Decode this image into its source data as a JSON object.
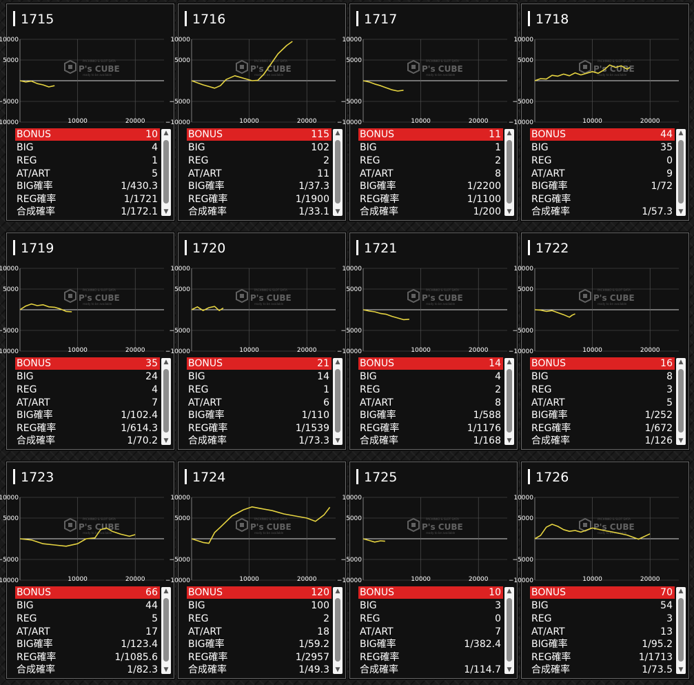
{
  "watermark": {
    "brand": "P's CUBE",
    "line1": "PACHINKO & SLOT DATA",
    "line2": "ready to be available"
  },
  "colors": {
    "line": "#e6d441",
    "bonus_row": "#dd2222",
    "grid": "#5a5a5a",
    "axis": "#9a9a9a"
  },
  "machines": [
    {
      "id": "1715",
      "stats": {
        "bonus_label": "BONUS",
        "bonus": "10",
        "big_label": "BIG",
        "big": "4",
        "reg_label": "REG",
        "reg": "1",
        "at_label": "AT/ART",
        "at": "5",
        "bigp_label": "BIG確率",
        "bigp": "1/430.3",
        "regp_label": "REG確率",
        "regp": "1/1721",
        "totp_label": "合成確率",
        "totp": "1/172.1"
      }
    },
    {
      "id": "1716",
      "stats": {
        "bonus_label": "BONUS",
        "bonus": "115",
        "big_label": "BIG",
        "big": "102",
        "reg_label": "REG",
        "reg": "2",
        "at_label": "AT/ART",
        "at": "11",
        "bigp_label": "BIG確率",
        "bigp": "1/37.3",
        "regp_label": "REG確率",
        "regp": "1/1900",
        "totp_label": "合成確率",
        "totp": "1/33.1"
      }
    },
    {
      "id": "1717",
      "stats": {
        "bonus_label": "BONUS",
        "bonus": "11",
        "big_label": "BIG",
        "big": "1",
        "reg_label": "REG",
        "reg": "2",
        "at_label": "AT/ART",
        "at": "8",
        "bigp_label": "BIG確率",
        "bigp": "1/2200",
        "regp_label": "REG確率",
        "regp": "1/1100",
        "totp_label": "合成確率",
        "totp": "1/200"
      }
    },
    {
      "id": "1718",
      "stats": {
        "bonus_label": "BONUS",
        "bonus": "44",
        "big_label": "BIG",
        "big": "35",
        "reg_label": "REG",
        "reg": "0",
        "at_label": "AT/ART",
        "at": "9",
        "bigp_label": "BIG確率",
        "bigp": "1/72",
        "regp_label": "REG確率",
        "regp": "",
        "totp_label": "合成確率",
        "totp": "1/57.3"
      }
    },
    {
      "id": "1719",
      "stats": {
        "bonus_label": "BONUS",
        "bonus": "35",
        "big_label": "BIG",
        "big": "24",
        "reg_label": "REG",
        "reg": "4",
        "at_label": "AT/ART",
        "at": "7",
        "bigp_label": "BIG確率",
        "bigp": "1/102.4",
        "regp_label": "REG確率",
        "regp": "1/614.3",
        "totp_label": "合成確率",
        "totp": "1/70.2"
      }
    },
    {
      "id": "1720",
      "stats": {
        "bonus_label": "BONUS",
        "bonus": "21",
        "big_label": "BIG",
        "big": "14",
        "reg_label": "REG",
        "reg": "1",
        "at_label": "AT/ART",
        "at": "6",
        "bigp_label": "BIG確率",
        "bigp": "1/110",
        "regp_label": "REG確率",
        "regp": "1/1539",
        "totp_label": "合成確率",
        "totp": "1/73.3"
      }
    },
    {
      "id": "1721",
      "stats": {
        "bonus_label": "BONUS",
        "bonus": "14",
        "big_label": "BIG",
        "big": "4",
        "reg_label": "REG",
        "reg": "2",
        "at_label": "AT/ART",
        "at": "8",
        "bigp_label": "BIG確率",
        "bigp": "1/588",
        "regp_label": "REG確率",
        "regp": "1/1176",
        "totp_label": "合成確率",
        "totp": "1/168"
      }
    },
    {
      "id": "1722",
      "stats": {
        "bonus_label": "BONUS",
        "bonus": "16",
        "big_label": "BIG",
        "big": "8",
        "reg_label": "REG",
        "reg": "3",
        "at_label": "AT/ART",
        "at": "5",
        "bigp_label": "BIG確率",
        "bigp": "1/252",
        "regp_label": "REG確率",
        "regp": "1/672",
        "totp_label": "合成確率",
        "totp": "1/126"
      }
    },
    {
      "id": "1723",
      "stats": {
        "bonus_label": "BONUS",
        "bonus": "66",
        "big_label": "BIG",
        "big": "44",
        "reg_label": "REG",
        "reg": "5",
        "at_label": "AT/ART",
        "at": "17",
        "bigp_label": "BIG確率",
        "bigp": "1/123.4",
        "regp_label": "REG確率",
        "regp": "1/1085.6",
        "totp_label": "合成確率",
        "totp": "1/82.3"
      }
    },
    {
      "id": "1724",
      "stats": {
        "bonus_label": "BONUS",
        "bonus": "120",
        "big_label": "BIG",
        "big": "100",
        "reg_label": "REG",
        "reg": "2",
        "at_label": "AT/ART",
        "at": "18",
        "bigp_label": "BIG確率",
        "bigp": "1/59.2",
        "regp_label": "REG確率",
        "regp": "1/2957",
        "totp_label": "合成確率",
        "totp": "1/49.3"
      }
    },
    {
      "id": "1725",
      "stats": {
        "bonus_label": "BONUS",
        "bonus": "10",
        "big_label": "BIG",
        "big": "3",
        "reg_label": "REG",
        "reg": "0",
        "at_label": "AT/ART",
        "at": "7",
        "bigp_label": "BIG確率",
        "bigp": "1/382.4",
        "regp_label": "REG確率",
        "regp": "",
        "totp_label": "合成確率",
        "totp": "1/114.7"
      }
    },
    {
      "id": "1726",
      "stats": {
        "bonus_label": "BONUS",
        "bonus": "70",
        "big_label": "BIG",
        "big": "54",
        "reg_label": "REG",
        "reg": "3",
        "at_label": "AT/ART",
        "at": "13",
        "bigp_label": "BIG確率",
        "bigp": "1/95.2",
        "regp_label": "REG確率",
        "regp": "1/1713",
        "totp_label": "合成確率",
        "totp": "1/73.5"
      }
    }
  ],
  "chart_data": [
    {
      "type": "line",
      "title": "1715",
      "ylim": [
        -10000,
        10000
      ],
      "yticks": [
        "10000",
        "5000",
        "−5000",
        "−10000"
      ],
      "xticks": [
        "10000",
        "20000"
      ],
      "x": [
        0,
        1000,
        2000,
        3000,
        4000,
        5000,
        6000
      ],
      "y": [
        0,
        -300,
        -100,
        -700,
        -1000,
        -1500,
        -1200
      ]
    },
    {
      "type": "line",
      "title": "1716",
      "ylim": [
        -10000,
        10000
      ],
      "yticks": [
        "10000",
        "5000",
        "−5000",
        "−10000"
      ],
      "xticks": [
        "10000",
        "20000"
      ],
      "x": [
        0,
        2000,
        4000,
        5000,
        6000,
        7500,
        9000,
        10500,
        11500,
        12500,
        13500,
        15000,
        16500,
        17500
      ],
      "y": [
        0,
        -1000,
        -1800,
        -1200,
        300,
        1200,
        600,
        0,
        100,
        1500,
        3500,
        6500,
        8500,
        9500
      ]
    },
    {
      "type": "line",
      "title": "1717",
      "ylim": [
        -10000,
        10000
      ],
      "yticks": [
        "10000",
        "5000",
        "−5000",
        "−10000"
      ],
      "xticks": [
        "10000",
        "20000"
      ],
      "x": [
        0,
        1000,
        2000,
        3000,
        4000,
        5000,
        6000,
        7000
      ],
      "y": [
        0,
        -300,
        -800,
        -1200,
        -1700,
        -2200,
        -2500,
        -2300
      ]
    },
    {
      "type": "line",
      "title": "1718",
      "ylim": [
        -10000,
        10000
      ],
      "yticks": [
        "10000",
        "5000",
        "−5000",
        "−10000"
      ],
      "xticks": [
        "10000",
        "20000"
      ],
      "x": [
        0,
        1000,
        2000,
        3000,
        4000,
        5000,
        6000,
        7000,
        8000,
        9000,
        10000,
        11000,
        12000,
        13000,
        14000,
        15000,
        16000,
        16500
      ],
      "y": [
        0,
        500,
        400,
        1300,
        1100,
        1600,
        1200,
        1900,
        1400,
        1800,
        2200,
        1800,
        2600,
        3800,
        3200,
        3600,
        2800,
        3200
      ]
    },
    {
      "type": "line",
      "title": "1719",
      "ylim": [
        -10000,
        10000
      ],
      "yticks": [
        "10000",
        "5000",
        "−5000",
        "−10000"
      ],
      "xticks": [
        "10000",
        "20000"
      ],
      "x": [
        0,
        1000,
        2000,
        3000,
        4000,
        5000,
        6000,
        7000,
        8000,
        9000
      ],
      "y": [
        0,
        900,
        1400,
        1000,
        1200,
        700,
        600,
        200,
        -400,
        -500
      ]
    },
    {
      "type": "line",
      "title": "1720",
      "ylim": [
        -10000,
        10000
      ],
      "yticks": [
        "10000",
        "5000",
        "−5000",
        "−10000"
      ],
      "xticks": [
        "10000",
        "20000"
      ],
      "x": [
        0,
        1000,
        2000,
        3000,
        4000,
        4800,
        5500
      ],
      "y": [
        0,
        700,
        -200,
        500,
        800,
        -200,
        400
      ]
    },
    {
      "type": "line",
      "title": "1721",
      "ylim": [
        -10000,
        10000
      ],
      "yticks": [
        "10000",
        "5000",
        "−5000",
        "−10000"
      ],
      "xticks": [
        "10000",
        "20000"
      ],
      "x": [
        0,
        1000,
        2000,
        3000,
        4000,
        5000,
        6000,
        7000,
        8000
      ],
      "y": [
        0,
        -300,
        -500,
        -900,
        -1100,
        -1600,
        -2000,
        -2400,
        -2300
      ]
    },
    {
      "type": "line",
      "title": "1722",
      "ylim": [
        -10000,
        10000
      ],
      "yticks": [
        "10000",
        "5000",
        "−5000",
        "−10000"
      ],
      "xticks": [
        "10000",
        "20000"
      ],
      "x": [
        0,
        1000,
        2000,
        3000,
        4000,
        5000,
        6000,
        6500,
        7000
      ],
      "y": [
        0,
        -100,
        -400,
        -200,
        -700,
        -1200,
        -1800,
        -1300,
        -1000
      ]
    },
    {
      "type": "line",
      "title": "1723",
      "ylim": [
        -10000,
        10000
      ],
      "yticks": [
        "10000",
        "5000",
        "−5000",
        "−10000"
      ],
      "xticks": [
        "10000",
        "20000"
      ],
      "x": [
        0,
        2000,
        4000,
        6000,
        8000,
        10000,
        11500,
        13000,
        14000,
        15000,
        16000,
        17500,
        19000,
        20000
      ],
      "y": [
        0,
        -300,
        -1200,
        -1500,
        -1800,
        -1200,
        0,
        200,
        2200,
        2600,
        1800,
        1100,
        600,
        1000
      ]
    },
    {
      "type": "line",
      "title": "1724",
      "ylim": [
        -10000,
        10000
      ],
      "yticks": [
        "10000",
        "5000",
        "−5000",
        "−10000"
      ],
      "xticks": [
        "10000",
        "20000"
      ],
      "x": [
        0,
        2000,
        3000,
        4000,
        5000,
        7000,
        9000,
        10500,
        12000,
        14000,
        16000,
        18000,
        20000,
        21500,
        23000,
        24000
      ],
      "y": [
        0,
        -900,
        -1100,
        1500,
        2800,
        5500,
        7000,
        7700,
        7300,
        6800,
        6000,
        5500,
        5000,
        4200,
        5800,
        7600
      ]
    },
    {
      "type": "line",
      "title": "1725",
      "ylim": [
        -10000,
        10000
      ],
      "yticks": [
        "10000",
        "5000",
        "−5000",
        "−10000"
      ],
      "xticks": [
        "10000",
        "20000"
      ],
      "x": [
        0,
        1000,
        2000,
        3000,
        3800
      ],
      "y": [
        0,
        -400,
        -800,
        -500,
        -600
      ]
    },
    {
      "type": "line",
      "title": "1726",
      "ylim": [
        -10000,
        10000
      ],
      "yticks": [
        "10000",
        "5000",
        "−5000",
        "−10000"
      ],
      "xticks": [
        "10000",
        "20000"
      ],
      "x": [
        0,
        1000,
        2000,
        3000,
        4000,
        5000,
        6000,
        7000,
        8000,
        10000,
        12000,
        14000,
        16000,
        18000,
        20000
      ],
      "y": [
        0,
        800,
        2800,
        3500,
        3000,
        2200,
        1800,
        2000,
        1600,
        2600,
        2000,
        1500,
        900,
        -100,
        1200
      ]
    }
  ]
}
